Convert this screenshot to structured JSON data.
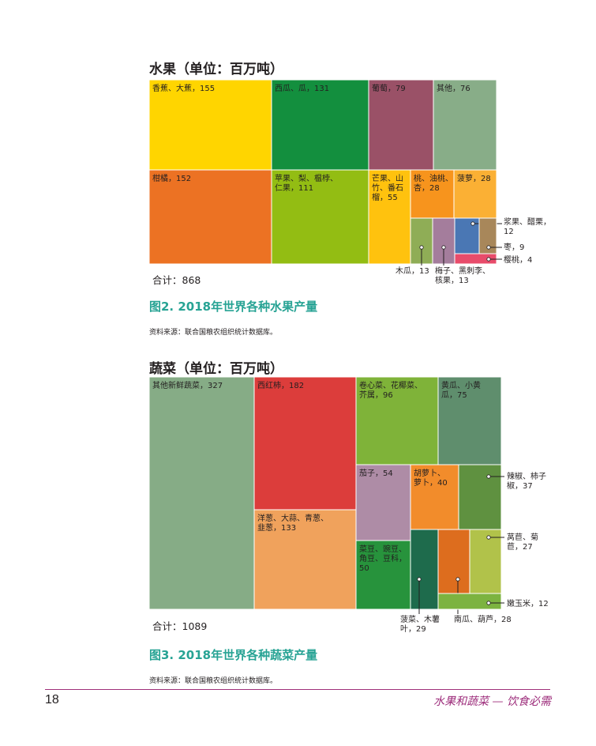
{
  "page": {
    "number": "18",
    "running_title": "水果和蔬菜 — 饮食必需"
  },
  "chart_data": [
    {
      "type": "treemap",
      "title": "水果（单位：百万吨）",
      "total_label": "合计：868",
      "caption": "图2. 2018年世界各种水果产量",
      "source": "资料来源：联合国粮农组织统计数据库。",
      "items": [
        {
          "label": "香蕉、大蕉，155",
          "value": 155,
          "color": "#ffd500",
          "label_lines": [
            "香蕉、大蕉，155"
          ]
        },
        {
          "label": "柑橘，152",
          "value": 152,
          "color": "#ec7223",
          "label_lines": [
            "柑橘，152"
          ]
        },
        {
          "label": "西瓜、瓜，131",
          "value": 131,
          "color": "#138f3e",
          "label_lines": [
            "西瓜、瓜，131"
          ]
        },
        {
          "label": "苹果、梨、榅桲、仁果，111",
          "value": 111,
          "color": "#93bd13",
          "label_lines": [
            "苹果、梨、榅桲、",
            "仁果，111"
          ]
        },
        {
          "label": "葡萄，79",
          "value": 79,
          "color": "#9a5167",
          "label_lines": [
            "葡萄，79"
          ]
        },
        {
          "label": "其他，76",
          "value": 76,
          "color": "#88ad88",
          "label_lines": [
            "其他，76"
          ]
        },
        {
          "label": "芒果、山竹、番石榴，55",
          "value": 55,
          "color": "#ffc20e",
          "label_lines": [
            "芒果、山",
            "竹、番石",
            "榴，55"
          ]
        },
        {
          "label": "桃、油桃、杏，28",
          "value": 28,
          "color": "#f7941d",
          "label_lines": [
            "桃、油桃、",
            "杏，28"
          ]
        },
        {
          "label": "菠萝，28",
          "value": 28,
          "color": "#fbb034",
          "label_lines": [
            "菠萝，28"
          ]
        },
        {
          "label": "木瓜，13",
          "value": 13,
          "color": "#8fad56",
          "label_lines": [
            "木瓜，13"
          ]
        },
        {
          "label": "梅子、黑刺李、核果，13",
          "value": 13,
          "color": "#a47d9c",
          "label_lines": [
            "梅子、黑刺李、",
            "核果，13"
          ]
        },
        {
          "label": "浆果、醋栗，12",
          "value": 12,
          "color": "#4a77b4",
          "label_lines": [
            "浆果、醋栗，",
            "12"
          ]
        },
        {
          "label": "枣，9",
          "value": 9,
          "color": "#a8875a",
          "label_lines": [
            "枣，9"
          ]
        },
        {
          "label": "樱桃，4",
          "value": 4,
          "color": "#e84c6b",
          "label_lines": [
            "樱桃，4"
          ]
        }
      ]
    },
    {
      "type": "treemap",
      "title": "蔬菜（单位：百万吨）",
      "total_label": "合计：1089",
      "caption": "图3. 2018年世界各种蔬菜产量",
      "source": "资料来源：联合国粮农组织统计数据库。",
      "items": [
        {
          "label": "其他新鲜蔬菜，327",
          "value": 327,
          "color": "#86ac86",
          "label_lines": [
            "其他新鲜蔬菜，327"
          ]
        },
        {
          "label": "西红柿，182",
          "value": 182,
          "color": "#dc3d3b",
          "label_lines": [
            "西红柿，182"
          ]
        },
        {
          "label": "洋葱、大蒜、青葱、韭葱，133",
          "value": 133,
          "color": "#f0a25c",
          "label_lines": [
            "洋葱、大蒜、青葱、",
            "韭葱，133"
          ]
        },
        {
          "label": "卷心菜、花椰菜、芥属，96",
          "value": 96,
          "color": "#7fb339",
          "label_lines": [
            "卷心菜、花椰菜、",
            "芥属，96"
          ]
        },
        {
          "label": "黄瓜、小黄瓜，75",
          "value": 75,
          "color": "#5f8e6d",
          "label_lines": [
            "黄瓜、小黄",
            "瓜，75"
          ]
        },
        {
          "label": "茄子，54",
          "value": 54,
          "color": "#ae8ca6",
          "label_lines": [
            "茄子，54"
          ]
        },
        {
          "label": "胡萝卜、萝卜，40",
          "value": 40,
          "color": "#f28c2b",
          "label_lines": [
            "胡萝卜、",
            "萝卜，40"
          ]
        },
        {
          "label": "辣椒、柿子椒，37",
          "value": 37,
          "color": "#5f9140",
          "label_lines": [
            "辣椒、柿子",
            "椒，37"
          ]
        },
        {
          "label": "菜豆、豌豆、角豆、豆科，50",
          "value": 50,
          "color": "#27933c",
          "label_lines": [
            "菜豆、豌豆、",
            "角豆、豆科，",
            "50"
          ]
        },
        {
          "label": "菠菜、木薯叶，29",
          "value": 29,
          "color": "#1e6b4c",
          "label_lines": [
            "菠菜、木薯",
            "叶，29"
          ]
        },
        {
          "label": "南瓜、葫芦，28",
          "value": 28,
          "color": "#dd6d1e",
          "label_lines": [
            "南瓜、葫芦，28"
          ]
        },
        {
          "label": "莴苣、菊苣，27",
          "value": 27,
          "color": "#b1c24a",
          "label_lines": [
            "莴苣、菊",
            "苣，27"
          ]
        },
        {
          "label": "嫩玉米，12",
          "value": 12,
          "color": "#7cb340",
          "label_lines": [
            "嫩玉米，12"
          ]
        }
      ]
    }
  ]
}
